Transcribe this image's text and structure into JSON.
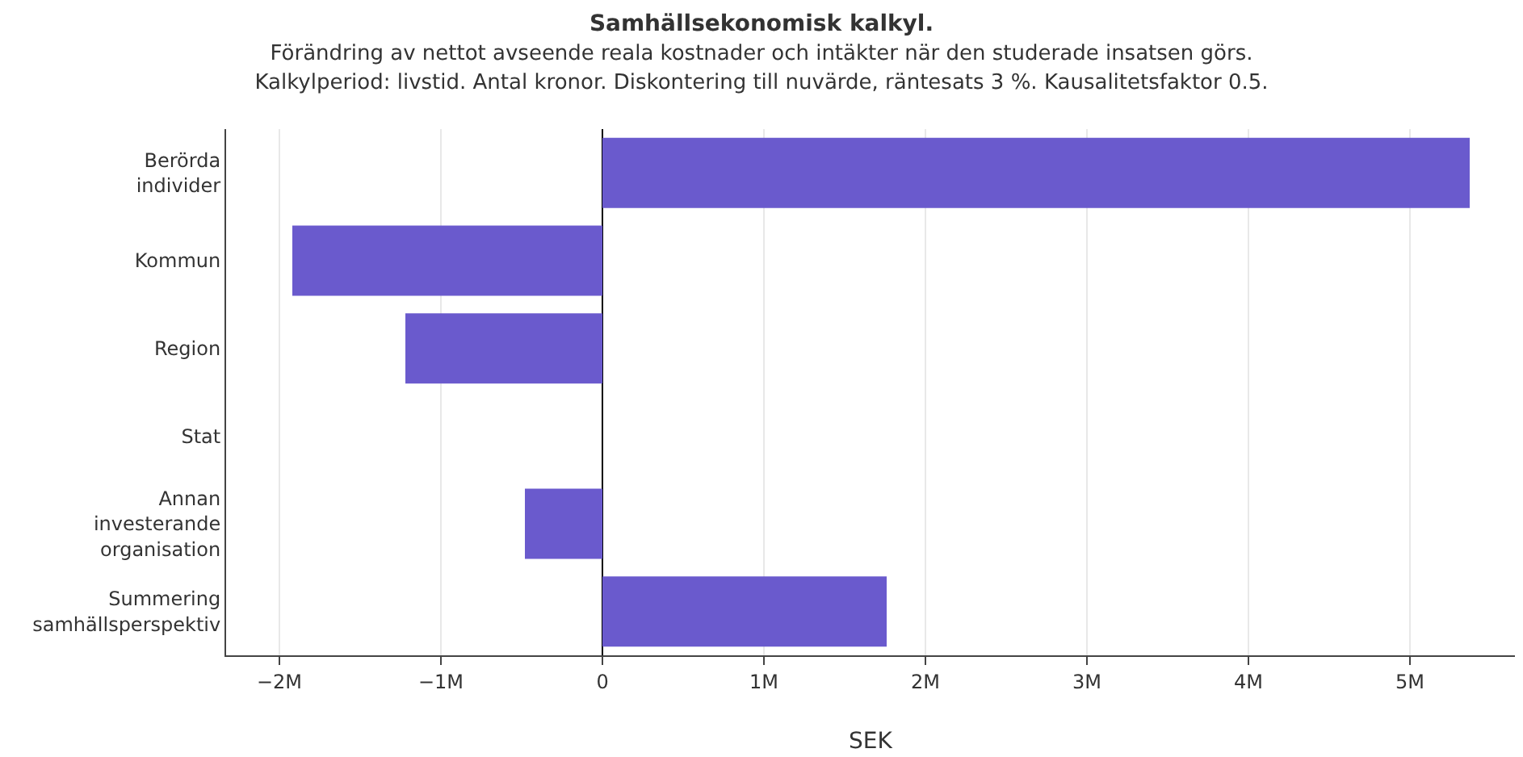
{
  "chart_data": {
    "type": "bar",
    "orientation": "horizontal",
    "title": "Samhällsekonomisk kalkyl.",
    "subtitle": "Förändring av nettot avseende reala kostnader och intäkter när den studerade insatsen görs.\nKalkylperiod: livstid. Antal kronor. Diskontering till nuvärde, räntesats 3 %. Kausalitetsfaktor 0.5.",
    "xlabel": "SEK",
    "categories": [
      "Berörda individer",
      "Kommun",
      "Region",
      "Stat",
      "Annan investerande organisation",
      "Summering samhällsperspektiv"
    ],
    "values": [
      5370000,
      -1920000,
      -1220000,
      0,
      -480000,
      1760000
    ],
    "color": "#6a5acd",
    "xlim": [
      -2330000,
      5650000
    ],
    "xticks": [
      {
        "value": -2000000,
        "label": "−2M"
      },
      {
        "value": -1000000,
        "label": "−1M"
      },
      0,
      {
        "value": 1000000,
        "label": "1M"
      },
      {
        "value": 2000000,
        "label": "2M"
      },
      {
        "value": 3000000,
        "label": "3M"
      },
      {
        "value": 4000000,
        "label": "4M"
      },
      {
        "value": 5000000,
        "label": "5M"
      }
    ],
    "grid": "x",
    "legend": false
  }
}
